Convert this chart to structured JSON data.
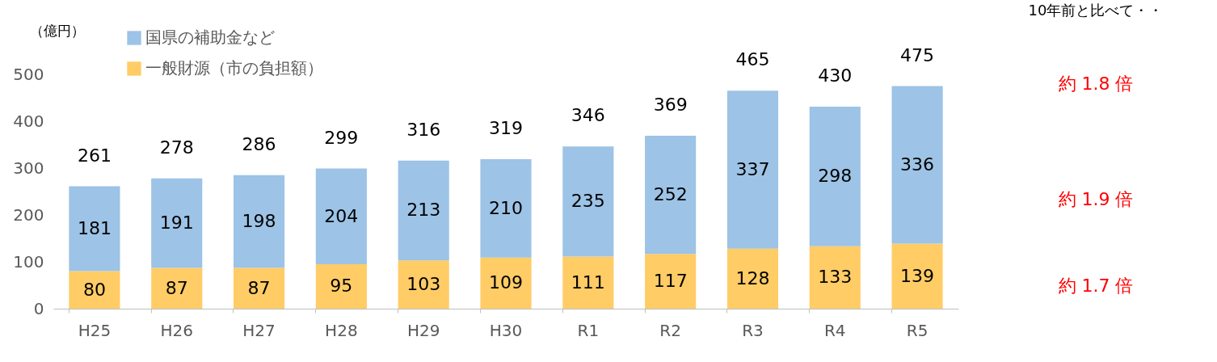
{
  "chart_data": {
    "type": "bar",
    "stacked": true,
    "ylabel": "（億円）",
    "categories": [
      "H25",
      "H26",
      "H27",
      "H28",
      "H29",
      "H30",
      "R1",
      "R2",
      "R3",
      "R4",
      "R5"
    ],
    "series": [
      {
        "name": "一般財源（市の負担額）",
        "color": "#ffcc66",
        "values": [
          80,
          87,
          87,
          95,
          103,
          109,
          111,
          117,
          128,
          133,
          139
        ]
      },
      {
        "name": "国県の補助金など",
        "color": "#9dc3e6",
        "values": [
          181,
          191,
          198,
          204,
          213,
          210,
          235,
          252,
          337,
          298,
          336
        ]
      }
    ],
    "totals": [
      "261",
      "278",
      "286",
      "299",
      "316",
      "319",
      "346",
      "369",
      "465",
      "430",
      "475"
    ],
    "data_labels": true,
    "ylim": [
      0,
      500
    ],
    "yticks": [
      0,
      100,
      200,
      300,
      400,
      500
    ],
    "grid": false,
    "legend": "top left",
    "annotations": [
      "10年前と比べて・・",
      "約 1.8 倍",
      "約 1.9 倍",
      "約 1.7 倍"
    ]
  }
}
